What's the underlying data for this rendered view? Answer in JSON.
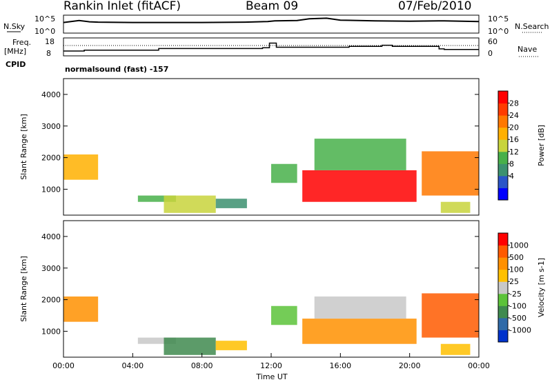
{
  "header": {
    "station": "Rankin Inlet (fitACF)",
    "beam": "Beam 09",
    "date": "07/Feb/2010"
  },
  "sky_panel": {
    "left_label": "N.Sky",
    "left_ticks": [
      "10^5",
      "10^0"
    ],
    "right_label": "N.Search",
    "right_ticks": [
      "10^5",
      "10^0"
    ]
  },
  "freq_panel": {
    "left_label_1": "Freq.",
    "left_label_2": "[MHz]",
    "left_ticks": [
      "18",
      "8"
    ],
    "right_label": "Nave",
    "right_ticks": [
      "60",
      "0"
    ],
    "cpid_label": "CPID",
    "cpid_value": "normalsound (fast) -157"
  },
  "colors": {
    "power": [
      "#0000ff",
      "#2a55c8",
      "#3c9170",
      "#48b04a",
      "#c8d43c",
      "#ffb000",
      "#ff7800",
      "#ff3c00",
      "#ff0000"
    ],
    "velocity": [
      "#0033cc",
      "#2f6aa8",
      "#3f8a4f",
      "#5cc33a",
      "#c8c8c8",
      "#ffc000",
      "#ff9000",
      "#ff5a00",
      "#ff0000"
    ]
  },
  "chart_data": [
    {
      "type": "line",
      "name": "N.Sky / N.Search",
      "x": [
        0,
        0.9,
        1.5,
        2,
        4,
        8,
        10.5,
        11.8,
        12.2,
        13.5,
        14.2,
        15.2,
        16,
        18,
        20,
        22,
        24
      ],
      "values": [
        3,
        3.6,
        3.2,
        3.1,
        3,
        3,
        3.1,
        3.3,
        3.5,
        3.6,
        4.1,
        4.3,
        3.7,
        3.5,
        3.4,
        3.5,
        3.3
      ],
      "xlim": [
        0,
        24
      ]
    },
    {
      "type": "line",
      "name": "Freq / Nave",
      "x": [
        0,
        1.2,
        1.2,
        5.5,
        5.5,
        11.5,
        11.5,
        11.9,
        11.9,
        12.3,
        12.3,
        16.5,
        16.5,
        18.4,
        18.4,
        19,
        19,
        21.7,
        21.7,
        22,
        22,
        24
      ],
      "freq": [
        10.5,
        10.5,
        11,
        11,
        12,
        12,
        12.5,
        12.5,
        15.3,
        15.3,
        12.8,
        12.8,
        13.3,
        13.3,
        14,
        14,
        13.3,
        13.3,
        11.8,
        11.8,
        11.4,
        11.4
      ],
      "xlim": [
        0,
        24
      ],
      "ylim": [
        8,
        18
      ]
    },
    {
      "type": "heatmap",
      "name": "Power",
      "xlabel": "",
      "ylabel": "Slant Range [km]",
      "colorbar_label": "Power [dB]",
      "colorbar_ticks": [
        "28",
        "24",
        "20",
        "16",
        "12",
        "8",
        "4"
      ],
      "xlim": [
        0,
        24
      ],
      "ylim": [
        180,
        4500
      ],
      "yticks": [
        "1000",
        "2000",
        "3000",
        "4000"
      ],
      "regions": [
        {
          "x0": 0.0,
          "x1": 2.0,
          "y0": 1300,
          "y1": 2100,
          "level": 5
        },
        {
          "x0": 4.3,
          "x1": 6.5,
          "y0": 600,
          "y1": 800,
          "level": 3
        },
        {
          "x0": 5.8,
          "x1": 8.8,
          "y0": 250,
          "y1": 800,
          "level": 4
        },
        {
          "x0": 8.8,
          "x1": 10.6,
          "y0": 400,
          "y1": 700,
          "level": 2
        },
        {
          "x0": 12.0,
          "x1": 13.5,
          "y0": 1200,
          "y1": 1800,
          "level": 3
        },
        {
          "x0": 13.8,
          "x1": 20.4,
          "y0": 600,
          "y1": 1600,
          "level": 8
        },
        {
          "x0": 14.5,
          "x1": 19.8,
          "y0": 1600,
          "y1": 2600,
          "level": 3
        },
        {
          "x0": 20.7,
          "x1": 24.0,
          "y0": 800,
          "y1": 2200,
          "level": 6
        },
        {
          "x0": 21.8,
          "x1": 23.5,
          "y0": 250,
          "y1": 600,
          "level": 4
        }
      ]
    },
    {
      "type": "heatmap",
      "name": "Velocity",
      "xlabel": "Time UT",
      "ylabel": "Slant Range [km]",
      "colorbar_label": "Velocity [m s-1]",
      "colorbar_ticks": [
        "1000",
        "500",
        "100",
        "25",
        "-25",
        "-100",
        "-500",
        "-1000"
      ],
      "xlim": [
        0,
        24
      ],
      "ylim": [
        180,
        4500
      ],
      "xticks": [
        "00:00",
        "04:00",
        "08:00",
        "12:00",
        "16:00",
        "20:00",
        "00:00"
      ],
      "yticks": [
        "1000",
        "2000",
        "3000",
        "4000"
      ],
      "regions": [
        {
          "x0": 0.0,
          "x1": 2.0,
          "y0": 1300,
          "y1": 2100,
          "level": 6
        },
        {
          "x0": 4.3,
          "x1": 6.5,
          "y0": 600,
          "y1": 800,
          "level": 4
        },
        {
          "x0": 5.8,
          "x1": 8.8,
          "y0": 250,
          "y1": 800,
          "level": 2
        },
        {
          "x0": 8.8,
          "x1": 10.6,
          "y0": 400,
          "y1": 700,
          "level": 5
        },
        {
          "x0": 12.0,
          "x1": 13.5,
          "y0": 1200,
          "y1": 1800,
          "level": 3
        },
        {
          "x0": 13.8,
          "x1": 20.4,
          "y0": 600,
          "y1": 1400,
          "level": 6
        },
        {
          "x0": 14.5,
          "x1": 19.8,
          "y0": 1400,
          "y1": 2100,
          "level": 4
        },
        {
          "x0": 20.7,
          "x1": 24.0,
          "y0": 800,
          "y1": 2200,
          "level": 7
        },
        {
          "x0": 21.8,
          "x1": 23.5,
          "y0": 250,
          "y1": 600,
          "level": 5
        }
      ]
    }
  ]
}
